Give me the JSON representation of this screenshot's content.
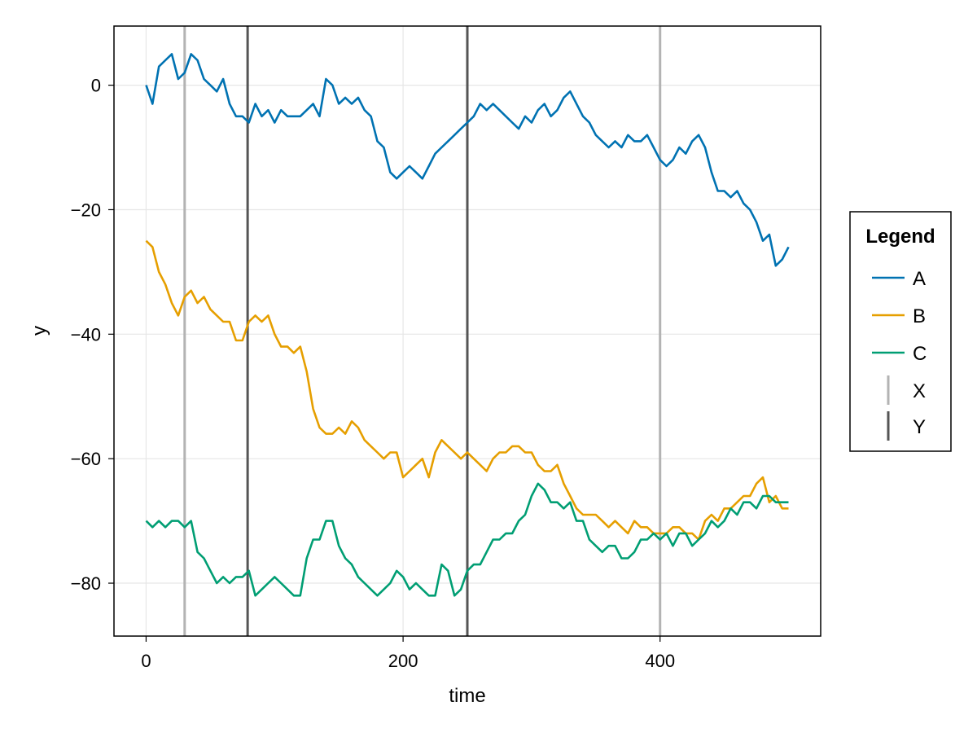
{
  "chart_data": {
    "type": "line",
    "title": "",
    "xlabel": "time",
    "ylabel": "y",
    "xlim": [
      -25,
      525
    ],
    "ylim": [
      -88.5,
      9.5
    ],
    "x_ticks": [
      0,
      200,
      400
    ],
    "y_ticks": [
      0,
      -20,
      -40,
      -60,
      -80
    ],
    "grid": true,
    "legend": {
      "title": "Legend",
      "placement": "right"
    },
    "series": [
      {
        "name": "A",
        "color": "#0072b2",
        "x": [
          0,
          5,
          10,
          15,
          20,
          25,
          30,
          35,
          40,
          45,
          50,
          55,
          60,
          65,
          70,
          75,
          80,
          85,
          90,
          95,
          100,
          105,
          110,
          115,
          120,
          125,
          130,
          135,
          140,
          145,
          150,
          155,
          160,
          165,
          170,
          175,
          180,
          185,
          190,
          195,
          200,
          205,
          210,
          215,
          220,
          225,
          230,
          235,
          240,
          245,
          250,
          255,
          260,
          265,
          270,
          275,
          280,
          285,
          290,
          295,
          300,
          305,
          310,
          315,
          320,
          325,
          330,
          335,
          340,
          345,
          350,
          355,
          360,
          365,
          370,
          375,
          380,
          385,
          390,
          395,
          400,
          405,
          410,
          415,
          420,
          425,
          430,
          435,
          440,
          445,
          450,
          455,
          460,
          465,
          470,
          475,
          480,
          485,
          490,
          495,
          500
        ],
        "values": [
          0,
          -3,
          3,
          4,
          5,
          1,
          2,
          5,
          4,
          1,
          0,
          -1,
          1,
          -3,
          -5,
          -5,
          -6,
          -3,
          -5,
          -4,
          -6,
          -4,
          -5,
          -5,
          -5,
          -4,
          -3,
          -5,
          1,
          0,
          -3,
          -2,
          -3,
          -2,
          -4,
          -5,
          -9,
          -10,
          -14,
          -15,
          -14,
          -13,
          -14,
          -15,
          -13,
          -11,
          -10,
          -9,
          -8,
          -7,
          -6,
          -5,
          -3,
          -4,
          -3,
          -4,
          -5,
          -6,
          -7,
          -5,
          -6,
          -4,
          -3,
          -5,
          -4,
          -2,
          -1,
          -3,
          -5,
          -6,
          -8,
          -9,
          -10,
          -9,
          -10,
          -8,
          -9,
          -9,
          -8,
          -10,
          -12,
          -13,
          -12,
          -10,
          -11,
          -9,
          -8,
          -10,
          -14,
          -17,
          -17,
          -18,
          -17,
          -19,
          -20,
          -22,
          -25,
          -24,
          -29,
          -28,
          -26
        ]
      },
      {
        "name": "B",
        "color": "#e69f00",
        "x": [
          0,
          5,
          10,
          15,
          20,
          25,
          30,
          35,
          40,
          45,
          50,
          55,
          60,
          65,
          70,
          75,
          80,
          85,
          90,
          95,
          100,
          105,
          110,
          115,
          120,
          125,
          130,
          135,
          140,
          145,
          150,
          155,
          160,
          165,
          170,
          175,
          180,
          185,
          190,
          195,
          200,
          205,
          210,
          215,
          220,
          225,
          230,
          235,
          240,
          245,
          250,
          255,
          260,
          265,
          270,
          275,
          280,
          285,
          290,
          295,
          300,
          305,
          310,
          315,
          320,
          325,
          330,
          335,
          340,
          345,
          350,
          355,
          360,
          365,
          370,
          375,
          380,
          385,
          390,
          395,
          400,
          405,
          410,
          415,
          420,
          425,
          430,
          435,
          440,
          445,
          450,
          455,
          460,
          465,
          470,
          475,
          480,
          485,
          490,
          495,
          500
        ],
        "values": [
          -25,
          -26,
          -30,
          -32,
          -35,
          -37,
          -34,
          -33,
          -35,
          -34,
          -36,
          -37,
          -38,
          -38,
          -41,
          -41,
          -38,
          -37,
          -38,
          -37,
          -40,
          -42,
          -42,
          -43,
          -42,
          -46,
          -52,
          -55,
          -56,
          -56,
          -55,
          -56,
          -54,
          -55,
          -57,
          -58,
          -59,
          -60,
          -59,
          -59,
          -63,
          -62,
          -61,
          -60,
          -63,
          -59,
          -57,
          -58,
          -59,
          -60,
          -59,
          -60,
          -61,
          -62,
          -60,
          -59,
          -59,
          -58,
          -58,
          -59,
          -59,
          -61,
          -62,
          -62,
          -61,
          -64,
          -66,
          -68,
          -69,
          -69,
          -69,
          -70,
          -71,
          -70,
          -71,
          -72,
          -70,
          -71,
          -71,
          -72,
          -72,
          -72,
          -71,
          -71,
          -72,
          -72,
          -73,
          -70,
          -69,
          -70,
          -68,
          -68,
          -67,
          -66,
          -66,
          -64,
          -63,
          -67,
          -66,
          -68,
          -68
        ]
      },
      {
        "name": "C",
        "color": "#009e73",
        "x": [
          0,
          5,
          10,
          15,
          20,
          25,
          30,
          35,
          40,
          45,
          50,
          55,
          60,
          65,
          70,
          75,
          80,
          85,
          90,
          95,
          100,
          105,
          110,
          115,
          120,
          125,
          130,
          135,
          140,
          145,
          150,
          155,
          160,
          165,
          170,
          175,
          180,
          185,
          190,
          195,
          200,
          205,
          210,
          215,
          220,
          225,
          230,
          235,
          240,
          245,
          250,
          255,
          260,
          265,
          270,
          275,
          280,
          285,
          290,
          295,
          300,
          305,
          310,
          315,
          320,
          325,
          330,
          335,
          340,
          345,
          350,
          355,
          360,
          365,
          370,
          375,
          380,
          385,
          390,
          395,
          400,
          405,
          410,
          415,
          420,
          425,
          430,
          435,
          440,
          445,
          450,
          455,
          460,
          465,
          470,
          475,
          480,
          485,
          490,
          495,
          500
        ],
        "values": [
          -70,
          -71,
          -70,
          -71,
          -70,
          -70,
          -71,
          -70,
          -75,
          -76,
          -78,
          -80,
          -79,
          -80,
          -79,
          -79,
          -78,
          -82,
          -81,
          -80,
          -79,
          -80,
          -81,
          -82,
          -82,
          -76,
          -73,
          -73,
          -70,
          -70,
          -74,
          -76,
          -77,
          -79,
          -80,
          -81,
          -82,
          -81,
          -80,
          -78,
          -79,
          -81,
          -80,
          -81,
          -82,
          -82,
          -77,
          -78,
          -82,
          -81,
          -78,
          -77,
          -77,
          -75,
          -73,
          -73,
          -72,
          -72,
          -70,
          -69,
          -66,
          -64,
          -65,
          -67,
          -67,
          -68,
          -67,
          -70,
          -70,
          -73,
          -74,
          -75,
          -74,
          -74,
          -76,
          -76,
          -75,
          -73,
          -73,
          -72,
          -73,
          -72,
          -74,
          -72,
          -72,
          -74,
          -73,
          -72,
          -70,
          -71,
          -70,
          -68,
          -69,
          -67,
          -67,
          -68,
          -66,
          -66,
          -67,
          -67,
          -67
        ]
      }
    ],
    "vlines": [
      {
        "name": "X",
        "color": "#b3b3b3",
        "x": [
          30,
          400
        ]
      },
      {
        "name": "Y",
        "color": "#555555",
        "x": [
          79,
          250
        ]
      }
    ]
  }
}
